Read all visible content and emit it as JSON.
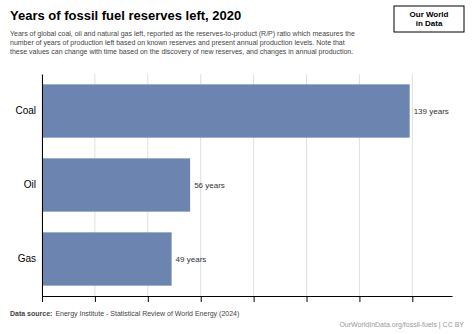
{
  "chart_data": {
    "type": "bar",
    "orientation": "horizontal",
    "title": "Years of fossil fuel reserves left, 2020",
    "subtitle": "Years of global coal, oil and natural gas left, reported as the reserves-to-product (R/P) ratio which measures the\nnumber of years of production left based on known reserves and present annual production levels. Note that\nthese values can change with time based on the discovery of new reserves, and changes in annual production.",
    "categories": [
      "Coal",
      "Oil",
      "Gas"
    ],
    "values": [
      139,
      56,
      49
    ],
    "value_labels": [
      "139 years",
      "56 years",
      "49 years"
    ],
    "data_labels": true,
    "color": "#6c85b0",
    "xlim": [
      0,
      155
    ],
    "xticks": [
      0,
      20,
      40,
      60,
      80,
      100,
      120,
      140
    ],
    "grid": true,
    "tick_labels": "y",
    "source_label": "Data source:",
    "source": "Energy Institute - Statistical Review of World Energy (2024)",
    "credit": "OurWorldInData.org/fossil-fuels | CC BY",
    "logo": [
      "Our World",
      "in Data"
    ]
  }
}
